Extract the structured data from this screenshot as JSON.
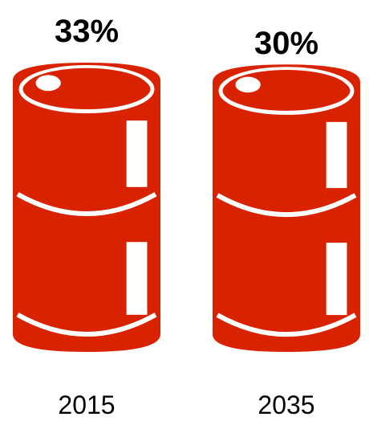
{
  "chart_data": {
    "type": "pictograph",
    "categories": [
      "2015",
      "2035"
    ],
    "values": [
      33,
      30
    ],
    "value_labels": [
      "33%",
      "30%"
    ],
    "unit": "%",
    "icon": "oil-barrel-icon",
    "colors": {
      "barrel": "#D92300",
      "highlight": "#ffffff",
      "text": "#000000"
    }
  }
}
